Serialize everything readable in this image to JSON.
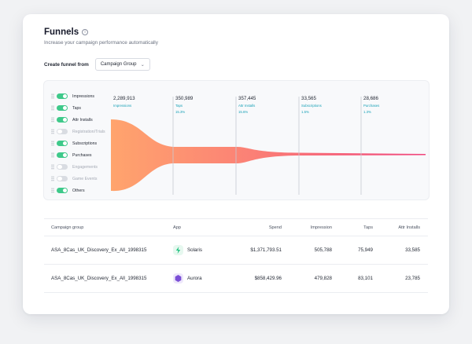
{
  "header": {
    "title": "Funnels",
    "subtitle": "Increase your campaign performance automatically"
  },
  "create_funnel": {
    "label": "Create funnel from",
    "selected": "Campaign Group"
  },
  "legend": [
    {
      "label": "Impressions",
      "enabled": true
    },
    {
      "label": "Taps",
      "enabled": true
    },
    {
      "label": "Attr Installs",
      "enabled": true
    },
    {
      "label": "Registration/Trials",
      "enabled": false
    },
    {
      "label": "Subscriptions",
      "enabled": true
    },
    {
      "label": "Purchases",
      "enabled": true
    },
    {
      "label": "Engagements",
      "enabled": false
    },
    {
      "label": "Game Events",
      "enabled": false
    },
    {
      "label": "Others",
      "enabled": true
    }
  ],
  "stages": [
    {
      "value": "2,289,913",
      "label": "Impressions",
      "pct": ""
    },
    {
      "value": "350,989",
      "label": "Taps",
      "pct": "15.3%"
    },
    {
      "value": "357,445",
      "label": "Attr Installs",
      "pct": "15.6%"
    },
    {
      "value": "33,565",
      "label": "Subscriptions",
      "pct": "1.5%"
    },
    {
      "value": "28,686",
      "label": "Purchases",
      "pct": "1.3%"
    }
  ],
  "colors": {
    "funnel_start": "#ffa46d",
    "funnel_end": "#f0457c",
    "toggle_on": "#3ec98a",
    "accent_text": "#17a0b6"
  },
  "table": {
    "headers": {
      "group": "Campaign group",
      "app": "App",
      "spend": "Spend",
      "impression": "Impression",
      "taps": "Taps",
      "installs": "Attr Installs"
    },
    "rows": [
      {
        "group": "ASA_8Cas_UK_Discovery_Ex_All_1998315",
        "app": "Solaris",
        "icon": "solaris-app-icon",
        "spend": "$1,371,793.51",
        "impression": "505,788",
        "taps": "75,949",
        "installs": "33,585"
      },
      {
        "group": "ASA_8Cas_UK_Discovery_Ex_All_1998315",
        "app": "Aurora",
        "icon": "aurora-app-icon",
        "spend": "$858,429.96",
        "impression": "479,828",
        "taps": "83,101",
        "installs": "23,785"
      }
    ]
  }
}
